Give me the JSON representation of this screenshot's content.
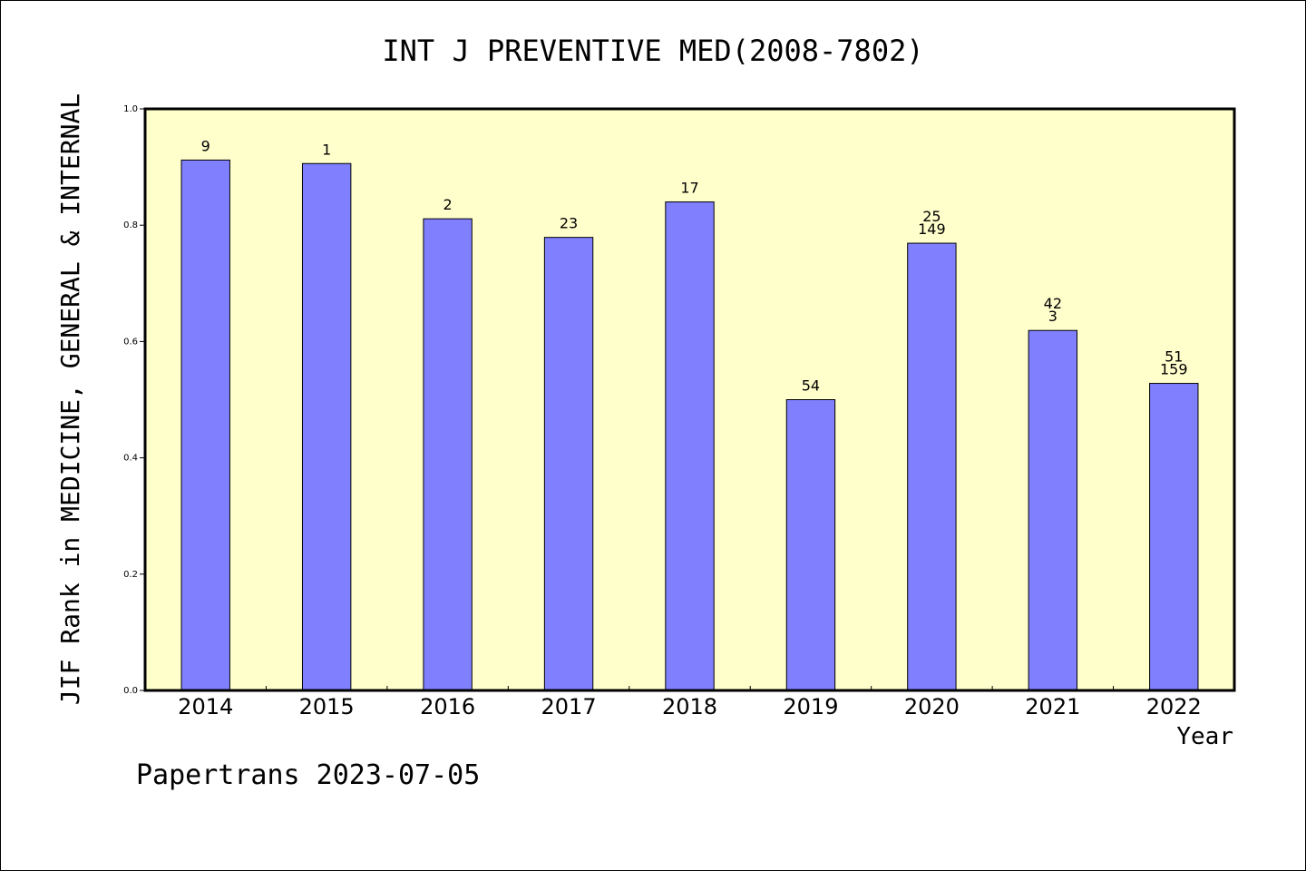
{
  "chart_data": {
    "type": "bar",
    "title": "INT J PREVENTIVE MED(2008-7802)",
    "xlabel": "Year",
    "ylabel": "JIF Rank in MEDICINE, GENERAL & INTERNAL",
    "ylim": [
      0,
      1.0
    ],
    "yticks": [
      "0.0",
      "0.2",
      "0.4",
      "0.6",
      "0.8",
      "1.0"
    ],
    "categories": [
      "2014",
      "2015",
      "2016",
      "2017",
      "2018",
      "2019",
      "2020",
      "2021",
      "2022"
    ],
    "values": [
      0.912,
      0.906,
      0.811,
      0.779,
      0.84,
      0.5,
      0.769,
      0.619,
      0.528
    ],
    "labels": [
      [
        "9"
      ],
      [
        "1"
      ],
      [
        "2"
      ],
      [
        "23"
      ],
      [
        "17"
      ],
      [
        "54"
      ],
      [
        "25",
        "149"
      ],
      [
        "42",
        "3"
      ],
      [
        "51",
        "159"
      ]
    ],
    "bar_color": "#8080ff",
    "plot_background": "#ffffcc",
    "grid": false
  },
  "footer": "Papertrans 2023-07-05"
}
